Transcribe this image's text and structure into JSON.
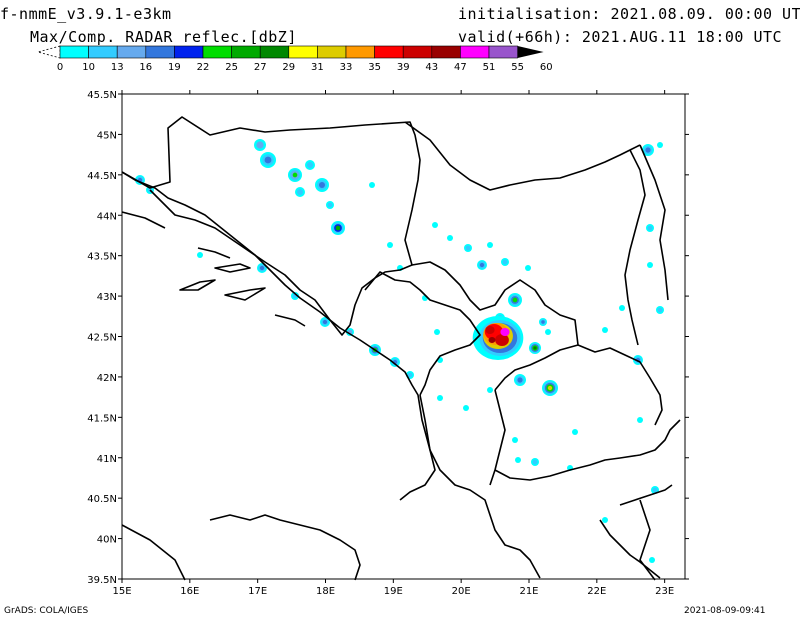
{
  "header": {
    "model": "f-nmmE_v3.9.1-e3km",
    "product": "Max/Comp. RADAR reflec.[dbZ]",
    "init": "initialisation: 2021.08.09. 00:00 UTC",
    "valid": "valid(+66h): 2021.AUG.11 18:00 UTC"
  },
  "colorbar": {
    "labels": [
      "0",
      "10",
      "13",
      "16",
      "19",
      "22",
      "25",
      "27",
      "29",
      "31",
      "33",
      "35",
      "39",
      "43",
      "47",
      "51",
      "55",
      "60"
    ],
    "colors": [
      "#00ffff",
      "#33ccff",
      "#66aaee",
      "#3377dd",
      "#0022ee",
      "#00dd00",
      "#00aa00",
      "#008800",
      "#ffff00",
      "#ddcc00",
      "#ff9900",
      "#ff0000",
      "#cc0000",
      "#990000",
      "#ff00ff",
      "#9955cc"
    ]
  },
  "axes": {
    "lat_labels": [
      "45.5N",
      "45N",
      "44.5N",
      "44N",
      "43.5N",
      "43N",
      "42.5N",
      "42N",
      "41.5N",
      "41N",
      "40.5N",
      "40N",
      "39.5N"
    ],
    "lon_labels": [
      "15E",
      "16E",
      "17E",
      "18E",
      "19E",
      "20E",
      "21E",
      "22E",
      "23E"
    ]
  },
  "footer": {
    "credit": "GrADS: COLA/IGES",
    "timestamp": "2021-08-09-09:41"
  }
}
